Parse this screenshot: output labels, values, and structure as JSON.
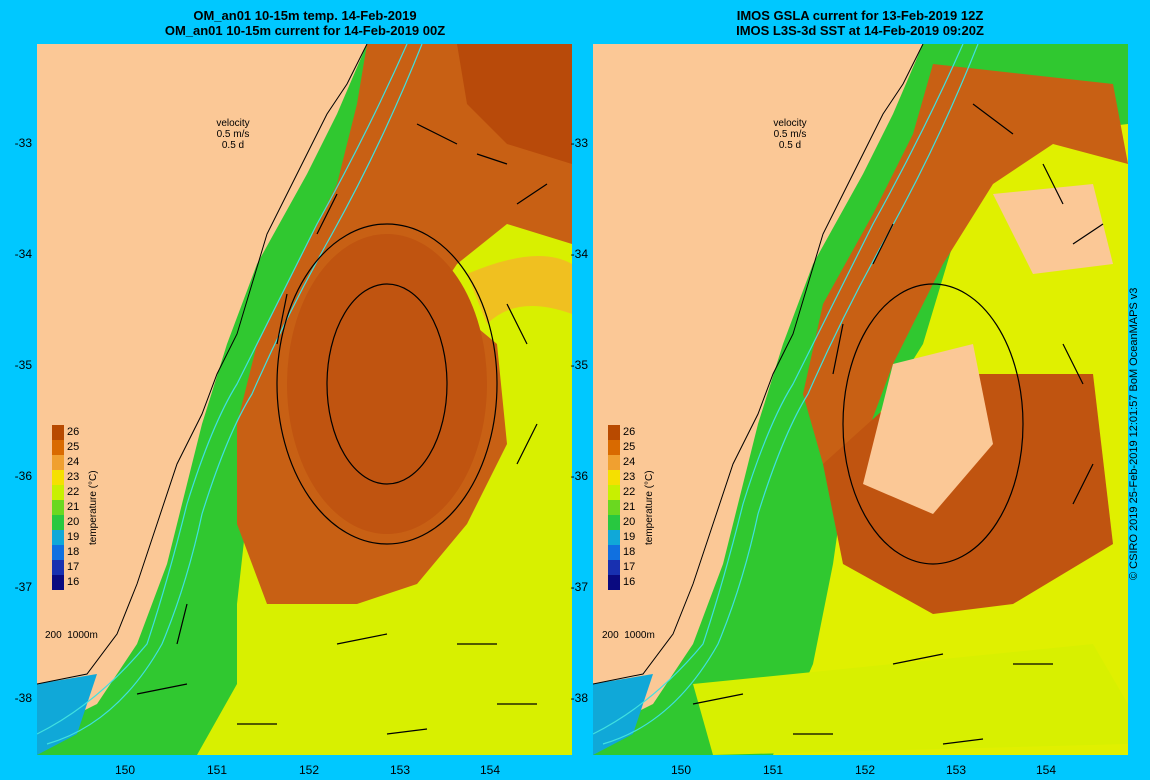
{
  "left_panel": {
    "title_line1": "OM_an01 10-15m temp. 14-Feb-2019",
    "title_line2": "OM_an01 10-15m current for 14-Feb-2019 00Z"
  },
  "right_panel": {
    "title_line1": "IMOS GSLA current for 13-Feb-2019 12Z",
    "title_line2": "IMOS L3S-3d SST at 14-Feb-2019 09:20Z"
  },
  "velocity_key": {
    "line1": "velocity",
    "line2": "0.5 m/s",
    "line3": "0.5 d"
  },
  "depth_key": {
    "label1": "200",
    "label2": "1000m"
  },
  "colorbar": {
    "title": "temperature (°C)",
    "ticks": [
      "26",
      "25",
      "24",
      "23",
      "22",
      "21",
      "20",
      "19",
      "18",
      "17",
      "16"
    ],
    "colors": [
      "#b84a00",
      "#d96a00",
      "#f0a030",
      "#f5e000",
      "#c8f000",
      "#6ad820",
      "#28c840",
      "#10a8d8",
      "#1070e0",
      "#1830b0",
      "#0a0a80"
    ]
  },
  "y_axis_labels": [
    "-33",
    "-34",
    "-35",
    "-36",
    "-37",
    "-38"
  ],
  "x_axis_labels": [
    "150",
    "151",
    "152",
    "153",
    "154"
  ],
  "copyright": "© CSIRO 2019   25-Feb-2019 12:01:57 BoM OceanMAPS v3",
  "colors": {
    "land": "#fbc896",
    "border": "#00c8ff",
    "warm": "#c85a10",
    "eddy": "#d06818",
    "green": "#30c830",
    "yellow": "#e8f000",
    "isobath": "#40e0e0"
  }
}
